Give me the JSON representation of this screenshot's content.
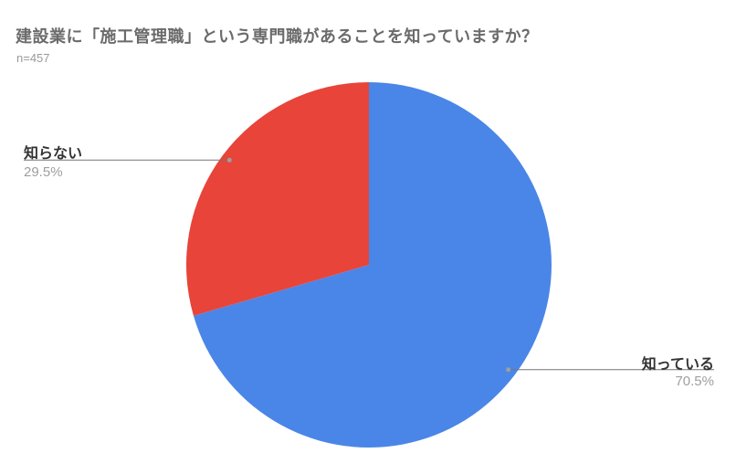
{
  "chart_data": {
    "type": "pie",
    "title": "建設業に「施工管理職」という専門職があることを知っていますか？",
    "n_label": "n=457",
    "start_angle_deg": 0,
    "direction": "clockwise",
    "legend_position": "labeled-callouts",
    "slices": [
      {
        "label": "知っている",
        "value": 70.5,
        "percent_label": "70.5%",
        "color": "#4a86e8",
        "callout_side": "right"
      },
      {
        "label": "知らない",
        "value": 29.5,
        "percent_label": "29.5%",
        "color": "#e8443a",
        "callout_side": "left"
      }
    ],
    "style": {
      "title_color": "#6b6b6b",
      "subtitle_color": "#9a9a9a",
      "label_color": "#333333",
      "percent_color": "#9e9e9e",
      "leader_line_color": "#757575",
      "leader_dot_color": "#9e9e9e",
      "background": "#ffffff"
    }
  }
}
